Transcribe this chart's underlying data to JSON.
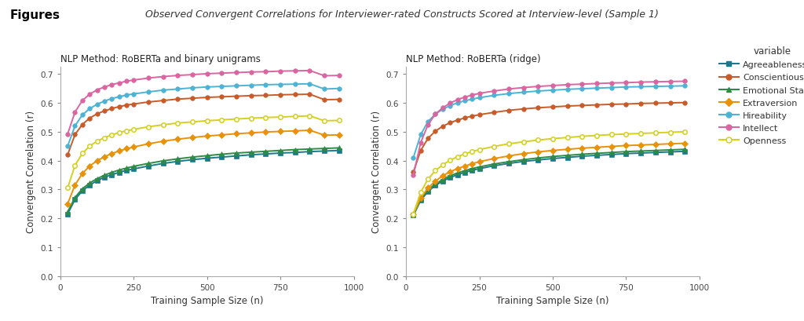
{
  "title_figures": "Figures",
  "title_main": "Observed Convergent Correlations for Interviewer-rated Constructs Scored at Interview-level (Sample 1)",
  "subplot1_title": "NLP Method: RoBERTa and binary unigrams",
  "subplot2_title": "NLP Method: RoBERTa (ridge)",
  "xlabel": "Training Sample Size (n)",
  "ylabel": "Convergent Correlation (r)",
  "legend_title": "variable",
  "variables": [
    "Agreeableness",
    "Conscientiousness",
    "Emotional Stability",
    "Extraversion",
    "Hireability",
    "Intellect",
    "Openness"
  ],
  "colors": {
    "Agreeableness": "#1b7a8a",
    "Conscientiousness": "#c75b2a",
    "Emotional Stability": "#2e8b45",
    "Extraversion": "#e8920a",
    "Hireability": "#4db3d4",
    "Intellect": "#d966a0",
    "Openness": "#d4d020"
  },
  "markers": {
    "Agreeableness": "s",
    "Conscientiousness": "o",
    "Emotional Stability": "^",
    "Extraversion": "D",
    "Hireability": "o",
    "Intellect": "o",
    "Openness": "o"
  },
  "marker_filled": {
    "Agreeableness": true,
    "Conscientiousness": true,
    "Emotional Stability": true,
    "Extraversion": true,
    "Hireability": true,
    "Intellect": true,
    "Openness": false
  },
  "x_values": [
    25,
    50,
    75,
    100,
    125,
    150,
    175,
    200,
    225,
    250,
    300,
    350,
    400,
    450,
    500,
    550,
    600,
    650,
    700,
    750,
    800,
    850,
    900,
    950
  ],
  "chart1_data": {
    "Agreeableness": [
      0.215,
      0.265,
      0.295,
      0.315,
      0.33,
      0.342,
      0.351,
      0.359,
      0.366,
      0.371,
      0.381,
      0.39,
      0.397,
      0.403,
      0.408,
      0.412,
      0.416,
      0.42,
      0.423,
      0.426,
      0.428,
      0.431,
      0.433,
      0.435
    ],
    "Conscientiousness": [
      0.42,
      0.49,
      0.525,
      0.547,
      0.562,
      0.572,
      0.58,
      0.587,
      0.592,
      0.596,
      0.603,
      0.608,
      0.613,
      0.616,
      0.619,
      0.621,
      0.623,
      0.625,
      0.626,
      0.628,
      0.629,
      0.63,
      0.611,
      0.612
    ],
    "Emotional Stability": [
      0.222,
      0.272,
      0.302,
      0.322,
      0.337,
      0.349,
      0.359,
      0.367,
      0.374,
      0.38,
      0.39,
      0.399,
      0.406,
      0.412,
      0.417,
      0.422,
      0.426,
      0.429,
      0.432,
      0.435,
      0.438,
      0.44,
      0.442,
      0.444
    ],
    "Extraversion": [
      0.25,
      0.315,
      0.355,
      0.381,
      0.399,
      0.413,
      0.424,
      0.433,
      0.441,
      0.447,
      0.458,
      0.467,
      0.474,
      0.48,
      0.485,
      0.489,
      0.493,
      0.496,
      0.499,
      0.501,
      0.503,
      0.505,
      0.488,
      0.489
    ],
    "Hireability": [
      0.45,
      0.52,
      0.558,
      0.58,
      0.595,
      0.606,
      0.615,
      0.621,
      0.627,
      0.631,
      0.638,
      0.644,
      0.648,
      0.652,
      0.655,
      0.657,
      0.659,
      0.661,
      0.663,
      0.664,
      0.665,
      0.666,
      0.648,
      0.65
    ],
    "Intellect": [
      0.492,
      0.568,
      0.608,
      0.63,
      0.645,
      0.655,
      0.663,
      0.669,
      0.675,
      0.679,
      0.686,
      0.691,
      0.695,
      0.698,
      0.701,
      0.703,
      0.705,
      0.707,
      0.708,
      0.71,
      0.711,
      0.712,
      0.694,
      0.695
    ],
    "Openness": [
      0.305,
      0.383,
      0.425,
      0.45,
      0.467,
      0.479,
      0.489,
      0.497,
      0.503,
      0.508,
      0.517,
      0.524,
      0.53,
      0.534,
      0.538,
      0.541,
      0.544,
      0.547,
      0.549,
      0.551,
      0.553,
      0.555,
      0.538,
      0.539
    ]
  },
  "chart2_data": {
    "Agreeableness": [
      0.21,
      0.262,
      0.293,
      0.314,
      0.329,
      0.341,
      0.351,
      0.359,
      0.366,
      0.372,
      0.382,
      0.39,
      0.397,
      0.402,
      0.407,
      0.411,
      0.415,
      0.418,
      0.421,
      0.424,
      0.426,
      0.428,
      0.43,
      0.432
    ],
    "Conscientiousness": [
      0.36,
      0.435,
      0.477,
      0.502,
      0.519,
      0.531,
      0.54,
      0.548,
      0.554,
      0.559,
      0.567,
      0.574,
      0.579,
      0.583,
      0.586,
      0.589,
      0.591,
      0.593,
      0.595,
      0.596,
      0.598,
      0.599,
      0.6,
      0.601
    ],
    "Emotional Stability": [
      0.215,
      0.267,
      0.298,
      0.319,
      0.334,
      0.347,
      0.357,
      0.365,
      0.372,
      0.378,
      0.388,
      0.396,
      0.403,
      0.409,
      0.414,
      0.418,
      0.422,
      0.425,
      0.428,
      0.431,
      0.433,
      0.435,
      0.437,
      0.439
    ],
    "Extraversion": [
      0.215,
      0.27,
      0.305,
      0.329,
      0.347,
      0.361,
      0.372,
      0.381,
      0.389,
      0.396,
      0.407,
      0.416,
      0.424,
      0.43,
      0.435,
      0.439,
      0.443,
      0.446,
      0.449,
      0.452,
      0.454,
      0.456,
      0.458,
      0.46
    ],
    "Hireability": [
      0.41,
      0.49,
      0.535,
      0.561,
      0.578,
      0.59,
      0.6,
      0.607,
      0.613,
      0.618,
      0.626,
      0.632,
      0.637,
      0.641,
      0.644,
      0.647,
      0.649,
      0.651,
      0.653,
      0.655,
      0.656,
      0.657,
      0.658,
      0.659
    ],
    "Intellect": [
      0.35,
      0.462,
      0.525,
      0.561,
      0.583,
      0.599,
      0.611,
      0.62,
      0.627,
      0.633,
      0.641,
      0.648,
      0.653,
      0.657,
      0.66,
      0.663,
      0.665,
      0.667,
      0.669,
      0.67,
      0.672,
      0.673,
      0.674,
      0.675
    ],
    "Openness": [
      0.215,
      0.29,
      0.336,
      0.365,
      0.385,
      0.401,
      0.413,
      0.423,
      0.431,
      0.438,
      0.449,
      0.458,
      0.465,
      0.471,
      0.476,
      0.48,
      0.484,
      0.487,
      0.49,
      0.492,
      0.494,
      0.496,
      0.498,
      0.5
    ]
  },
  "ylim": [
    0.0,
    0.725
  ],
  "yticks": [
    0.0,
    0.1,
    0.2,
    0.3,
    0.4,
    0.5,
    0.6,
    0.7
  ],
  "xlim": [
    0,
    1000
  ],
  "xticks": [
    0,
    250,
    500,
    750,
    1000
  ],
  "background_color": "#ffffff",
  "marker_size": 4,
  "linewidth": 1.4
}
